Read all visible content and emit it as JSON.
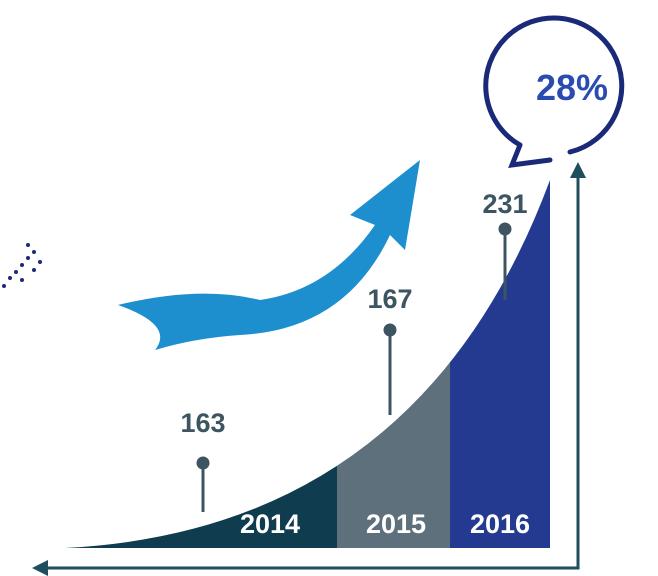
{
  "segments": [
    {
      "year": "2014",
      "value": "163"
    },
    {
      "year": "2015",
      "value": "167"
    },
    {
      "year": "2016",
      "value": "231"
    }
  ],
  "growth": "28%"
}
